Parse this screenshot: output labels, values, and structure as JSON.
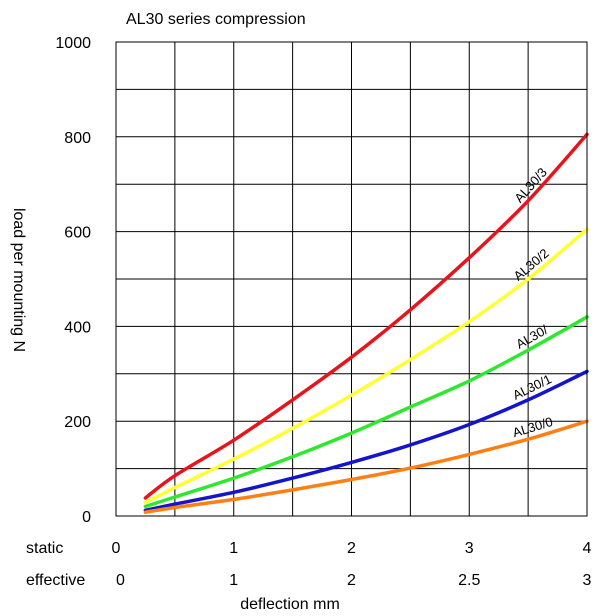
{
  "chart_data": {
    "type": "line",
    "title": "AL30 series compression",
    "xlabel": "deflection mm",
    "ylabel": "load per mounting N",
    "xlim": [
      0,
      4
    ],
    "ylim": [
      0,
      1000
    ],
    "grid": true,
    "x_ticks_static": {
      "row_label": "static",
      "values": [
        0,
        1,
        2,
        3,
        4
      ],
      "labels": [
        "0",
        "1",
        "2",
        "3",
        "4"
      ]
    },
    "x_ticks_effective": {
      "row_label": "effective",
      "labels": [
        "0",
        "1",
        "2",
        "2.5",
        "3"
      ]
    },
    "y_ticks": [
      0,
      200,
      400,
      600,
      800,
      1000
    ],
    "series": [
      {
        "name": "AL30/3",
        "color": "#e8141c",
        "x": [
          0.25,
          0.5,
          1.0,
          1.5,
          2.0,
          2.5,
          3.0,
          3.5,
          4.0
        ],
        "y": [
          38,
          85,
          160,
          245,
          335,
          435,
          545,
          665,
          805
        ]
      },
      {
        "name": "AL30/2",
        "color": "#ffff33",
        "x": [
          0.25,
          0.5,
          1.0,
          1.5,
          2.0,
          2.5,
          3.0,
          3.5,
          4.0
        ],
        "y": [
          28,
          60,
          120,
          185,
          255,
          330,
          410,
          500,
          605
        ]
      },
      {
        "name": "AL30/",
        "color": "#2ee82e",
        "x": [
          0.25,
          0.5,
          1.0,
          1.5,
          2.0,
          2.5,
          3.0,
          3.5,
          4.0
        ],
        "y": [
          20,
          40,
          80,
          125,
          175,
          230,
          285,
          350,
          420
        ]
      },
      {
        "name": "AL30/1",
        "color": "#1414cc",
        "x": [
          0.25,
          0.5,
          1.0,
          1.5,
          2.0,
          2.5,
          3.0,
          3.5,
          4.0
        ],
        "y": [
          12,
          25,
          50,
          80,
          113,
          150,
          193,
          245,
          305
        ]
      },
      {
        "name": "AL30/0",
        "color": "#ff7f14",
        "x": [
          0.25,
          0.5,
          1.0,
          1.5,
          2.0,
          2.5,
          3.0,
          3.5,
          4.0
        ],
        "y": [
          8,
          18,
          35,
          55,
          77,
          101,
          130,
          162,
          200
        ]
      }
    ]
  }
}
